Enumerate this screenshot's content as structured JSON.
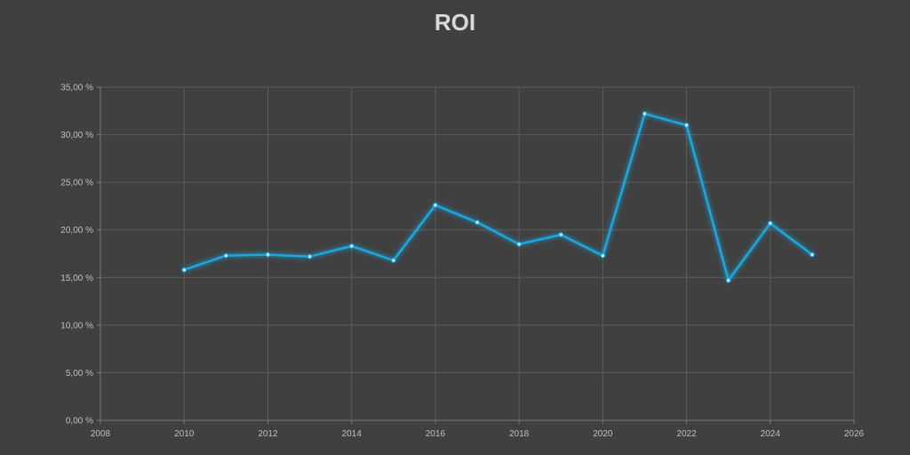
{
  "chart_data": {
    "type": "line",
    "title": "ROI",
    "xlabel": "",
    "ylabel": "",
    "grid": true,
    "xlim": [
      2008,
      2026
    ],
    "ylim": [
      0,
      35
    ],
    "x_ticks": [
      2008,
      2010,
      2012,
      2014,
      2016,
      2018,
      2020,
      2022,
      2024,
      2026
    ],
    "x_tick_labels": [
      "2008",
      "2010",
      "2012",
      "2014",
      "2016",
      "2018",
      "2020",
      "2022",
      "2024",
      "2026"
    ],
    "y_ticks": [
      0,
      5,
      10,
      15,
      20,
      25,
      30,
      35
    ],
    "y_tick_labels": [
      "0,00 %",
      "5,00 %",
      "10,00 %",
      "15,00 %",
      "20,00 %",
      "25,00 %",
      "30,00 %",
      "35,00 %"
    ],
    "series": [
      {
        "color": "#1ea7e1",
        "x": [
          2010,
          2011,
          2012,
          2013,
          2014,
          2015,
          2016,
          2017,
          2018,
          2019,
          2020,
          2021,
          2022,
          2023,
          2024,
          2025
        ],
        "y": [
          15.8,
          17.3,
          17.4,
          17.2,
          18.3,
          16.8,
          22.6,
          20.8,
          18.5,
          19.5,
          17.3,
          32.2,
          31.0,
          14.7,
          20.7,
          17.4
        ]
      }
    ],
    "colors": {
      "background": "#404040",
      "grid": "#5c5c5c",
      "axis": "#7a7a7a",
      "text": "#bfbfbf",
      "title": "#d9d9d9"
    }
  }
}
